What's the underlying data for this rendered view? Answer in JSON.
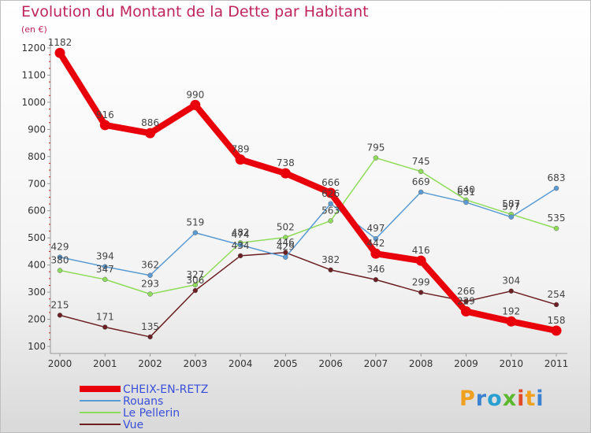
{
  "title": "Evolution du Montant de la Dette par Habitant",
  "unit": "(en €)",
  "logo": {
    "letters": [
      "P",
      "r",
      "o",
      "x",
      "i",
      "t",
      "i"
    ],
    "colors": [
      "#f0a020",
      "#3b82d0",
      "#2aa0d0",
      "#5cb82e",
      "#e24a2a",
      "#f0a020",
      "#3b82d0"
    ]
  },
  "chart_data": {
    "type": "line",
    "x": [
      "2000",
      "2001",
      "2002",
      "2003",
      "2004",
      "2005",
      "2006",
      "2007",
      "2008",
      "2009",
      "2010",
      "2011"
    ],
    "ylim": [
      100,
      1200
    ],
    "yticks": [
      100,
      200,
      300,
      400,
      500,
      600,
      700,
      800,
      900,
      1000,
      1100,
      1200
    ],
    "grid": false,
    "legend_position": "bottom-left",
    "series": [
      {
        "name": "Vue",
        "color": "#6b1f22",
        "values": [
          215,
          171,
          135,
          306,
          434,
          446,
          382,
          346,
          299,
          266,
          304,
          254
        ]
      },
      {
        "name": "Le Pellerin",
        "color": "#8edc5a",
        "values": [
          380,
          347,
          293,
          327,
          482,
          502,
          563,
          795,
          745,
          640,
          587,
          535
        ]
      },
      {
        "name": "Rouans",
        "color": "#5a9bd4",
        "values": [
          429,
          394,
          362,
          519,
          474,
          429,
          626,
          497,
          669,
          631,
          577,
          683
        ]
      },
      {
        "name": "CHEIX-EN-RETZ",
        "color": "#e8000b",
        "values": [
          1182,
          916,
          886,
          990,
          789,
          738,
          666,
          442,
          416,
          229,
          192,
          158
        ]
      }
    ],
    "legend": [
      "CHEIX-EN-RETZ",
      "Rouans",
      "Le Pellerin",
      "Vue"
    ]
  }
}
